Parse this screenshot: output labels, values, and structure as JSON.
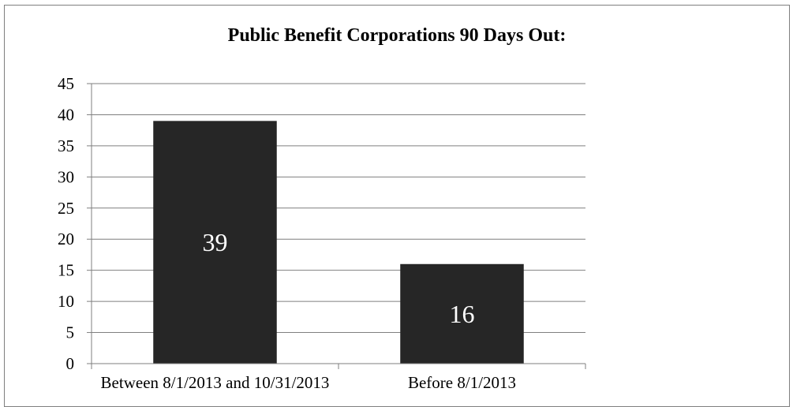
{
  "chart_data": {
    "type": "bar",
    "title": "Public Benefit Corporations 90 Days Out:",
    "categories": [
      "Between 8/1/2013 and 10/31/2013",
      "Before 8/1/2013"
    ],
    "values": [
      39,
      16
    ],
    "data_labels": [
      "39",
      "16"
    ],
    "ylim": [
      0,
      45
    ],
    "y_ticks": [
      0,
      5,
      10,
      15,
      20,
      25,
      30,
      35,
      40,
      45
    ],
    "grid": true,
    "legend": "none",
    "xlabel": "",
    "ylabel": "",
    "bar_color": "#262626",
    "label_color": "#ffffff",
    "grid_color": "#7f7f7f"
  }
}
